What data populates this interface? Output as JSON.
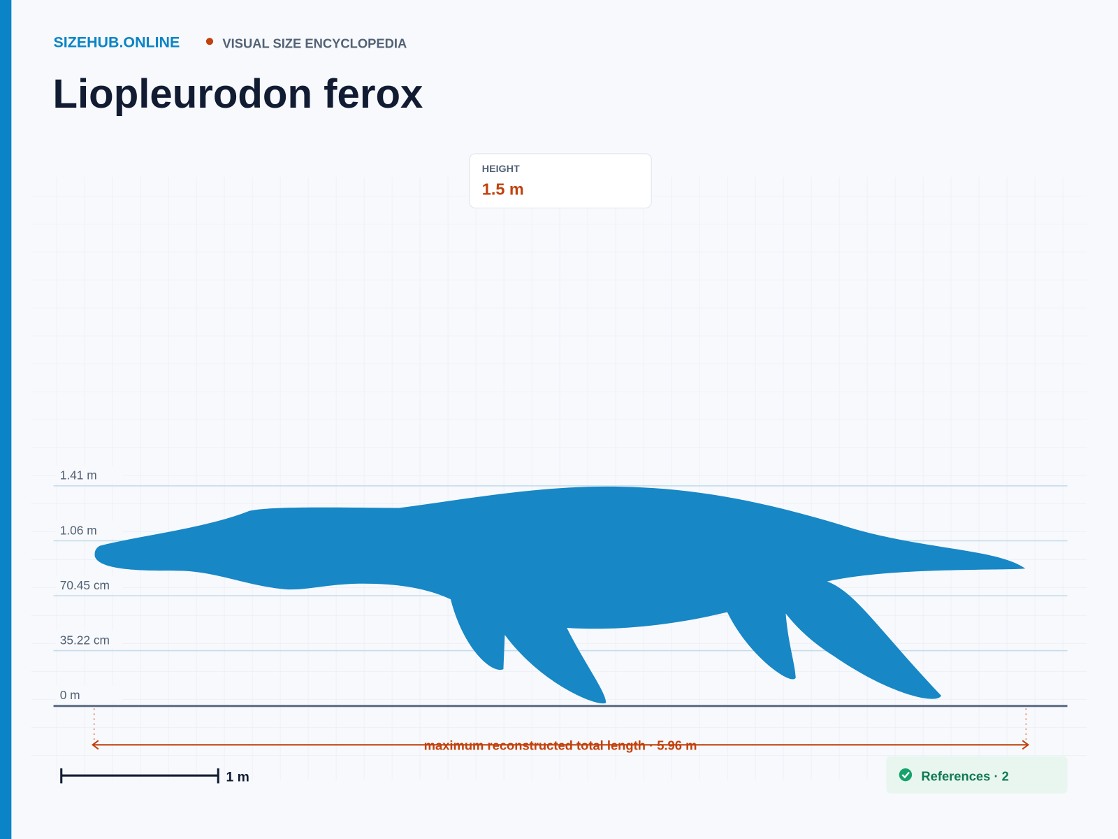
{
  "header": {
    "brand": "SIZEHUB.ONLINE",
    "tagline": "VISUAL SIZE ENCYCLOPEDIA",
    "title": "Liopleurodon ferox"
  },
  "height_card": {
    "label": "HEIGHT",
    "value": "1.5 m"
  },
  "scale_lines": [
    "1.41 m",
    "1.06 m",
    "70.45 cm",
    "35.22 cm",
    "0 m"
  ],
  "length_annotation": "maximum reconstructed total length · 5.96 m",
  "scale_bar": "1 m",
  "references": "References · 2"
}
